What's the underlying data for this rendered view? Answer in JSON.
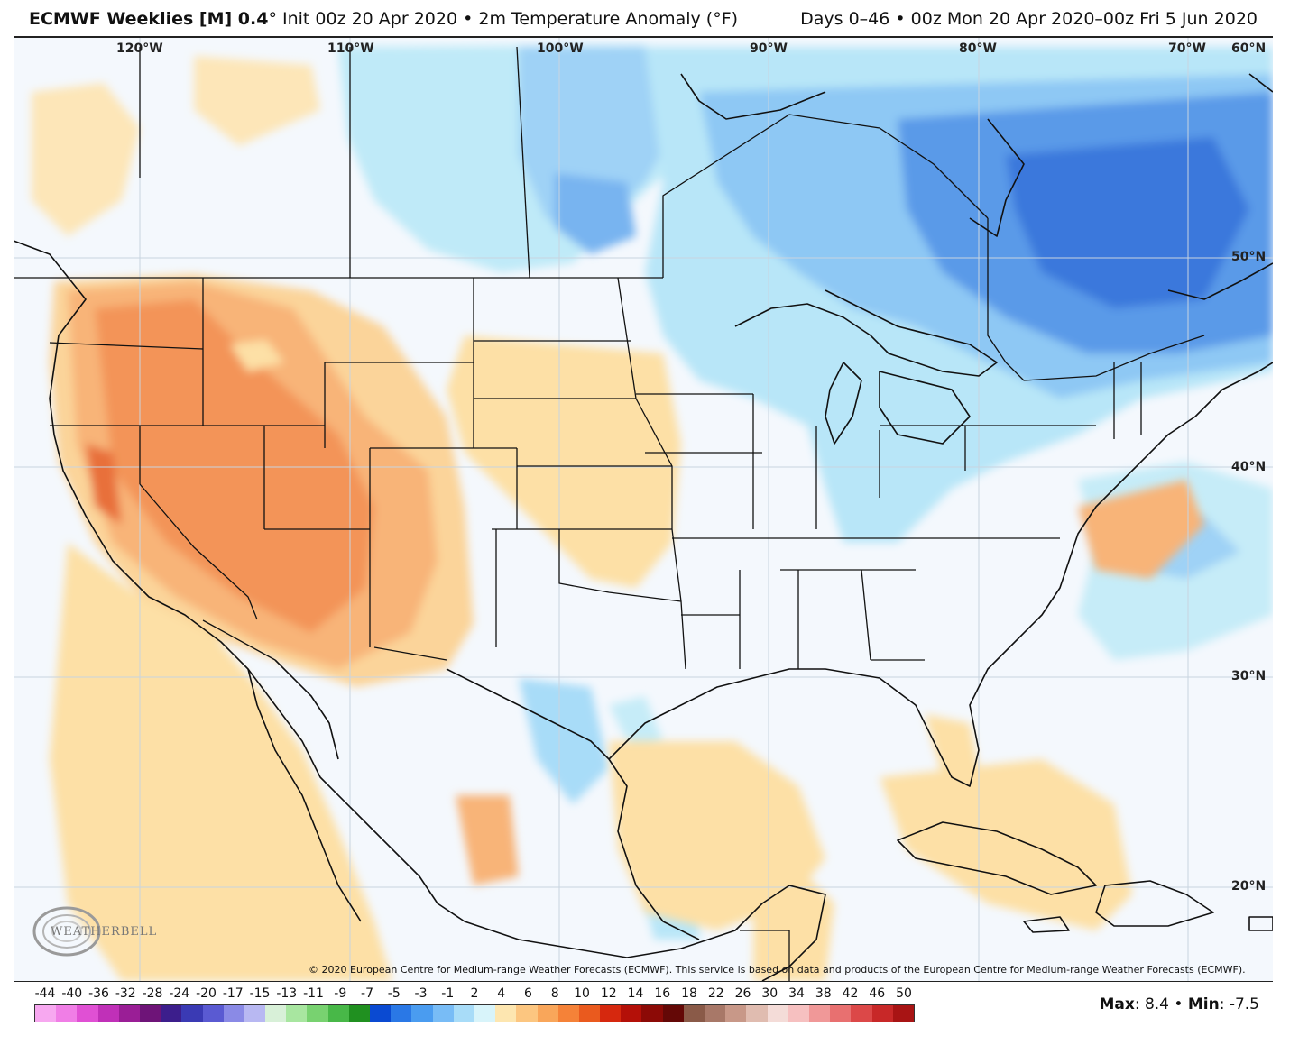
{
  "header": {
    "model": "ECMWF Weeklies [M] 0.4",
    "degree": "°",
    "init": " Init 00z 20 Apr 2020",
    "sep": " • ",
    "product": "2m Temperature Anomaly (°F)",
    "range": "Days 0–46  •  00z Mon 20 Apr 2020–00z Fri 5 Jun 2020"
  },
  "map": {
    "lon_labels": [
      "120°W",
      "110°W",
      "100°W",
      "90°W",
      "80°W",
      "70°W",
      "60°N"
    ],
    "lat_labels": [
      "50°N",
      "40°N",
      "30°N",
      "20°N"
    ],
    "copyright": "© 2020 European Centre for Medium-range Weather Forecasts (ECMWF). This service is based on data and products of the European Centre for Medium-range Weather Forecasts (ECMWF).",
    "logo": "WEATHERBELL"
  },
  "legend": {
    "ticks": [
      "-44",
      "-40",
      "-36",
      "-32",
      "-28",
      "-24",
      "-20",
      "-17",
      "-15",
      "-13",
      "-11",
      "-9",
      "-7",
      "-5",
      "-3",
      "-1",
      "2",
      "4",
      "6",
      "8",
      "10",
      "12",
      "14",
      "16",
      "18",
      "22",
      "26",
      "30",
      "34",
      "38",
      "42",
      "46",
      "50"
    ],
    "colors": [
      "#f7a8f0",
      "#f07ee6",
      "#e050d4",
      "#c030b8",
      "#9a1e96",
      "#6e1478",
      "#3c1e8c",
      "#3a3ab4",
      "#5a5ad2",
      "#8a8ae6",
      "#b8b8f2",
      "#d8f0d8",
      "#a8e6a0",
      "#78d270",
      "#48b848",
      "#209020",
      "#0a4ad2",
      "#2a78e6",
      "#4a9cf0",
      "#78bcf6",
      "#a8dcf8",
      "#d8f4fa",
      "#fde6b0",
      "#fcc680",
      "#f9a65a",
      "#f58238",
      "#ea5a1e",
      "#d6280e",
      "#b41008",
      "#8c0a06",
      "#640806",
      "#8a5a48",
      "#a87868",
      "#c89888",
      "#e0bcb0",
      "#f4dcd8",
      "#f6c0c0",
      "#f09898",
      "#e87070",
      "#dc4848",
      "#c82828",
      "#a81414"
    ],
    "max_label": "Max",
    "max_value": ": 8.4 • ",
    "min_label": "Min",
    "min_value": ": -7.5"
  }
}
